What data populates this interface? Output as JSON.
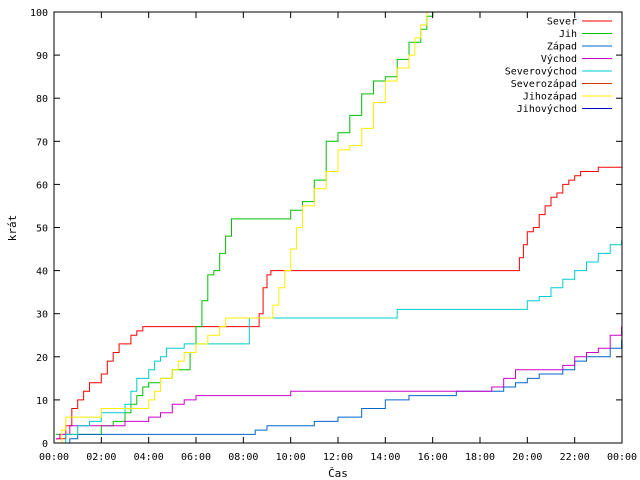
{
  "chart_data": {
    "type": "line",
    "title": "",
    "xlabel": "Čas",
    "ylabel": "krát",
    "x_range": [
      "00:00",
      "24:00"
    ],
    "ylim": [
      0,
      100
    ],
    "y_ticks": [
      0,
      10,
      20,
      30,
      40,
      50,
      60,
      70,
      80,
      90,
      100
    ],
    "x_ticks": [
      "00:00",
      "02:00",
      "04:00",
      "06:00",
      "08:00",
      "10:00",
      "12:00",
      "14:00",
      "16:00",
      "18:00",
      "20:00",
      "22:00",
      "00:00"
    ],
    "grid": false,
    "legend_position": "top-right",
    "series": [
      {
        "name": "Sever",
        "color": "#ff0000",
        "x": [
          "00:05",
          "00:30",
          "00:45",
          "01:00",
          "01:15",
          "01:30",
          "01:45",
          "02:00",
          "02:15",
          "02:30",
          "02:45",
          "03:00",
          "03:15",
          "03:30",
          "03:45",
          "04:00",
          "08:30",
          "08:40",
          "08:50",
          "09:00",
          "09:10",
          "09:20",
          "19:30",
          "19:40",
          "19:50",
          "20:00",
          "20:15",
          "20:30",
          "20:45",
          "21:00",
          "21:15",
          "21:30",
          "21:45",
          "22:00",
          "22:15",
          "22:30",
          "23:00",
          "23:30",
          "23:59"
        ],
        "values": [
          1,
          4,
          8,
          10,
          12,
          14,
          14,
          16,
          19,
          21,
          23,
          23,
          25,
          26,
          27,
          27,
          27,
          30,
          36,
          39,
          40,
          40,
          40,
          43,
          46,
          49,
          50,
          53,
          55,
          57,
          58,
          60,
          61,
          62,
          63,
          63,
          64,
          64,
          64
        ]
      },
      {
        "name": "Jih",
        "color": "#00c000",
        "x": [
          "00:05",
          "01:45",
          "02:00",
          "02:30",
          "03:00",
          "03:15",
          "03:30",
          "03:45",
          "04:00",
          "04:30",
          "05:00",
          "05:30",
          "05:45",
          "06:00",
          "06:15",
          "06:30",
          "06:45",
          "07:00",
          "07:15",
          "07:30",
          "07:45",
          "08:00",
          "09:15",
          "10:00",
          "10:30",
          "11:00",
          "11:30",
          "12:00",
          "12:30",
          "13:00",
          "13:30",
          "14:00",
          "14:30",
          "15:00",
          "15:30",
          "15:45",
          "16:00"
        ],
        "values": [
          2,
          2,
          4,
          5,
          7,
          9,
          11,
          13,
          14,
          15,
          17,
          17,
          21,
          27,
          33,
          39,
          40,
          44,
          48,
          52,
          52,
          52,
          52,
          54,
          56,
          61,
          70,
          72,
          76,
          81,
          84,
          85,
          89,
          93,
          96,
          99,
          100
        ]
      },
      {
        "name": "Západ",
        "color": "#0066cc",
        "x": [
          "00:05",
          "00:20",
          "00:40",
          "01:00",
          "08:00",
          "08:30",
          "09:00",
          "10:00",
          "11:00",
          "12:00",
          "13:00",
          "14:00",
          "15:00",
          "16:00",
          "17:00",
          "18:00",
          "18:30",
          "19:00",
          "19:30",
          "20:00",
          "20:30",
          "21:00",
          "21:30",
          "22:00",
          "22:30",
          "23:00",
          "23:30",
          "23:59"
        ],
        "values": [
          0,
          0,
          1,
          2,
          2,
          3,
          4,
          4,
          5,
          6,
          8,
          10,
          11,
          11,
          12,
          12,
          12,
          13,
          14,
          15,
          16,
          16,
          17,
          19,
          20,
          20,
          22,
          24
        ]
      },
      {
        "name": "Východ",
        "color": "#cc00cc",
        "x": [
          "00:05",
          "00:15",
          "00:40",
          "01:00",
          "02:00",
          "03:00",
          "04:00",
          "04:30",
          "05:00",
          "05:30",
          "06:00",
          "09:00",
          "10:00",
          "14:00",
          "18:00",
          "18:30",
          "19:00",
          "19:30",
          "20:00",
          "21:00",
          "21:30",
          "22:00",
          "22:30",
          "23:00",
          "23:30",
          "23:59"
        ],
        "values": [
          1,
          2,
          4,
          4,
          4,
          5,
          6,
          7,
          9,
          10,
          11,
          11,
          12,
          12,
          12,
          13,
          15,
          17,
          17,
          17,
          18,
          20,
          21,
          22,
          25,
          27
        ]
      },
      {
        "name": "Severovýchod",
        "color": "#00cccc",
        "x": [
          "00:05",
          "00:30",
          "01:00",
          "01:30",
          "02:00",
          "03:00",
          "03:15",
          "03:30",
          "04:00",
          "04:15",
          "04:30",
          "04:45",
          "05:00",
          "05:30",
          "06:00",
          "07:00",
          "08:00",
          "08:15",
          "09:00",
          "14:30",
          "15:00",
          "19:45",
          "20:00",
          "20:30",
          "21:00",
          "21:30",
          "22:00",
          "22:30",
          "23:00",
          "23:30",
          "23:59"
        ],
        "values": [
          0,
          2,
          4,
          5,
          7,
          9,
          12,
          15,
          17,
          19,
          20,
          22,
          22,
          23,
          23,
          23,
          23,
          29,
          29,
          31,
          31,
          31,
          33,
          34,
          36,
          38,
          40,
          42,
          44,
          46,
          47
        ]
      },
      {
        "name": "Severozápad",
        "color": "#cc3300",
        "x": [],
        "values": []
      },
      {
        "name": "Jihozápad",
        "color": "#ffee00",
        "x": [
          "00:05",
          "00:20",
          "00:30",
          "01:00",
          "02:00",
          "03:00",
          "03:30",
          "04:00",
          "04:15",
          "04:30",
          "05:00",
          "05:15",
          "05:30",
          "06:00",
          "06:30",
          "07:00",
          "07:15",
          "08:00",
          "09:00",
          "09:15",
          "09:30",
          "09:45",
          "10:00",
          "10:15",
          "10:30",
          "11:00",
          "11:30",
          "12:00",
          "12:30",
          "13:00",
          "13:30",
          "14:00",
          "14:30",
          "15:00",
          "15:15",
          "15:30",
          "15:45"
        ],
        "values": [
          0,
          3,
          6,
          6,
          8,
          8,
          8,
          10,
          12,
          15,
          17,
          19,
          21,
          23,
          25,
          27,
          29,
          29,
          29,
          32,
          36,
          40,
          45,
          50,
          55,
          59,
          63,
          68,
          69,
          73,
          79,
          84,
          87,
          90,
          94,
          97,
          100
        ]
      },
      {
        "name": "Jihovýchod",
        "color": "#0000cc",
        "x": [],
        "values": []
      }
    ]
  }
}
